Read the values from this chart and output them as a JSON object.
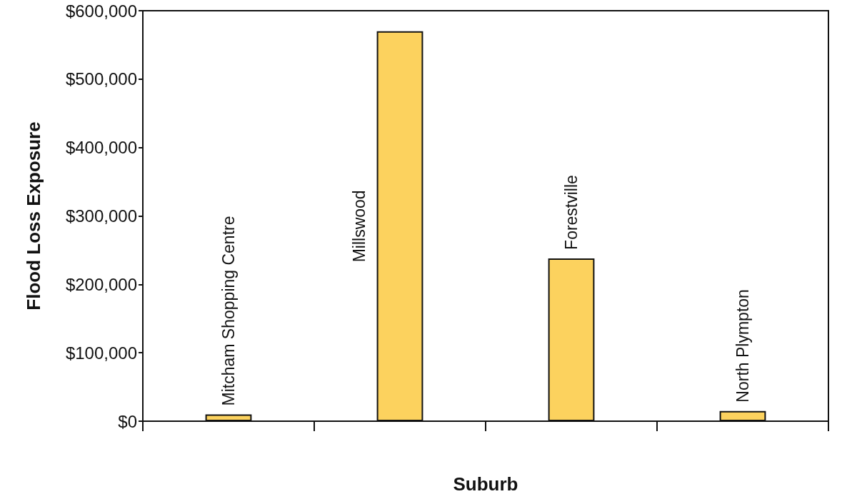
{
  "chart_data": {
    "type": "bar",
    "xlabel": "Suburb",
    "ylabel": "Flood Loss Exposure",
    "categories": [
      "Mitcham Shopping Centre",
      "Millswood",
      "Forestville",
      "North Plympton"
    ],
    "values": [
      10000,
      570000,
      238000,
      15000
    ],
    "color": "#fcd25e",
    "ylim": [
      0,
      600000
    ],
    "yticks": [
      {
        "value": 0,
        "label": "$0"
      },
      {
        "value": 100000,
        "label": "$100,000"
      },
      {
        "value": 200000,
        "label": "$200,000"
      },
      {
        "value": 300000,
        "label": "$300,000"
      },
      {
        "value": 400000,
        "label": "$400,000"
      },
      {
        "value": 500000,
        "label": "$500,000"
      },
      {
        "value": 600000,
        "label": "$600,000"
      }
    ],
    "grid": false
  }
}
